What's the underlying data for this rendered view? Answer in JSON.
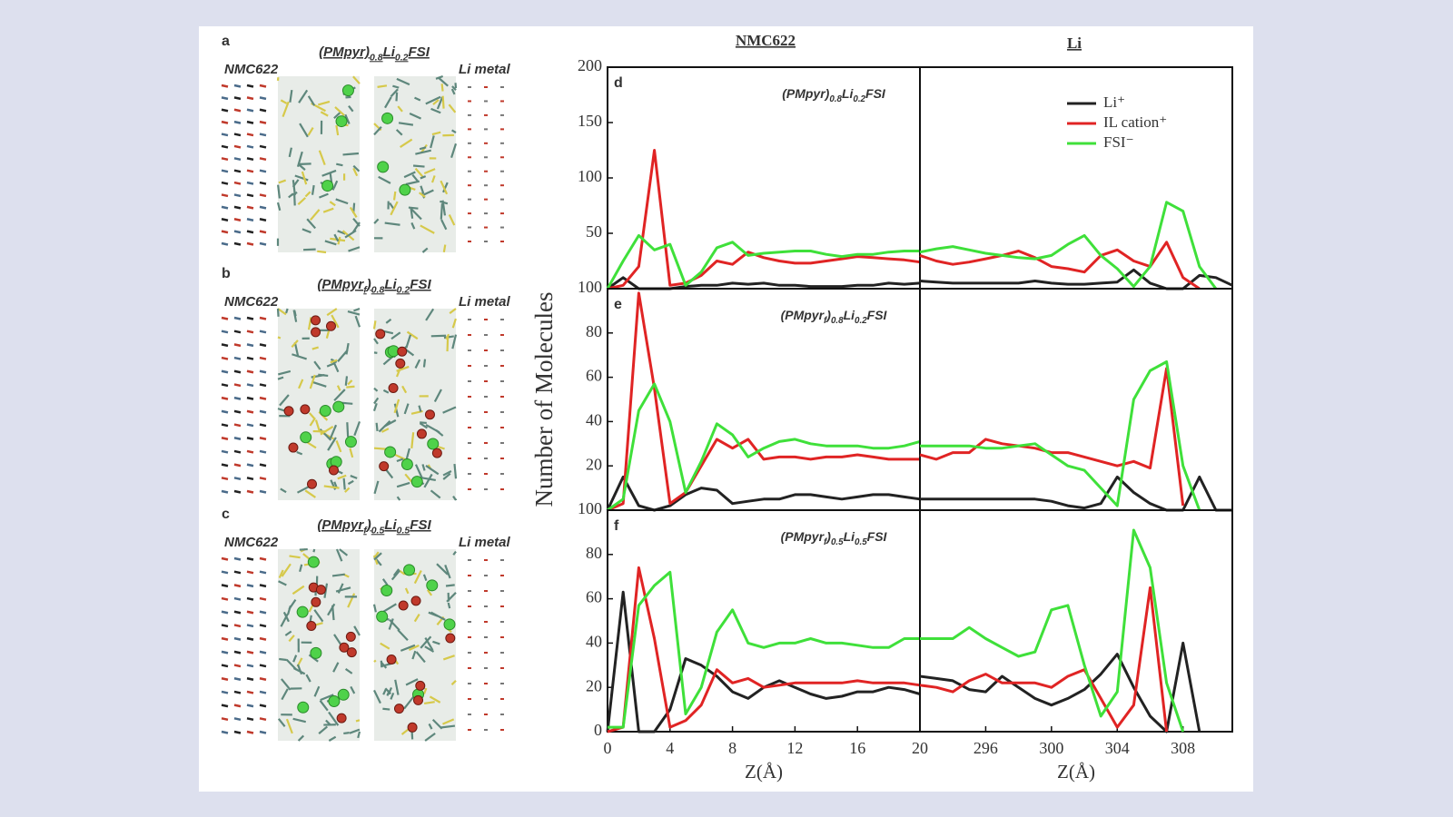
{
  "panels": [
    {
      "letter": "a",
      "title": [
        "(PMpyr)",
        "0.8",
        "Li",
        "0.2",
        "FSI"
      ],
      "left_label": "NMC622",
      "right_label": "Li metal"
    },
    {
      "letter": "b",
      "title": [
        "(PMpyr",
        "f",
        ")",
        "0.8",
        "Li",
        "0.2",
        "FSI"
      ],
      "left_label": "NMC622",
      "right_label": "Li metal"
    },
    {
      "letter": "c",
      "title": [
        "(PMpyr",
        "f",
        ")",
        "0.5",
        "Li",
        "0.5",
        "FSI"
      ],
      "left_label": "NMC622",
      "right_label": "Li metal"
    }
  ],
  "column_headers": [
    "NMC622",
    "Li"
  ],
  "ylabel": "Number of Molecules",
  "chart_data": [
    {
      "type": "line",
      "letter": "d",
      "title": [
        "(PMpyr)",
        "0.8",
        "Li",
        "0.2",
        "FSI"
      ],
      "x": [
        0,
        1,
        2,
        3,
        4,
        5,
        6,
        7,
        8,
        9,
        10,
        11,
        12,
        13,
        14,
        15,
        16,
        17,
        18,
        19,
        20
      ],
      "xlim": [
        0,
        20
      ],
      "ylim": [
        0,
        200
      ],
      "yticks": [
        50,
        100,
        150,
        200
      ],
      "series": [
        {
          "color": "#222222",
          "values": [
            0,
            10,
            0,
            0,
            0,
            2,
            3,
            3,
            5,
            4,
            5,
            3,
            3,
            2,
            2,
            2,
            3,
            3,
            5,
            4,
            5
          ]
        },
        {
          "color": "#e02424",
          "values": [
            0,
            3,
            20,
            125,
            3,
            5,
            12,
            25,
            22,
            33,
            28,
            25,
            23,
            23,
            25,
            27,
            29,
            28,
            27,
            26,
            24
          ]
        },
        {
          "color": "#3fe03a",
          "values": [
            0,
            25,
            48,
            35,
            40,
            3,
            15,
            37,
            42,
            30,
            32,
            33,
            34,
            34,
            31,
            29,
            31,
            31,
            33,
            34,
            34
          ]
        }
      ]
    },
    {
      "type": "line",
      "legend": "upper right",
      "x": [
        292,
        293,
        294,
        295,
        296,
        297,
        298,
        299,
        300,
        301,
        302,
        303,
        304,
        305,
        306,
        307,
        308,
        309,
        310,
        311
      ],
      "xlim": [
        292,
        311
      ],
      "ylim": [
        0,
        200
      ],
      "series": [
        {
          "name": "Li⁺",
          "color": "#222222",
          "values": [
            7,
            6,
            5,
            5,
            5,
            5,
            5,
            7,
            5,
            4,
            4,
            5,
            6,
            17,
            5,
            0,
            0,
            12,
            10,
            3
          ]
        },
        {
          "name": "IL cation⁺",
          "color": "#e02424",
          "values": [
            30,
            25,
            22,
            24,
            27,
            30,
            34,
            28,
            20,
            18,
            15,
            30,
            35,
            25,
            20,
            42,
            10,
            0,
            null,
            null
          ]
        },
        {
          "name": "FSI⁻",
          "color": "#3fe03a",
          "values": [
            33,
            36,
            38,
            35,
            32,
            30,
            28,
            27,
            30,
            40,
            48,
            30,
            18,
            2,
            20,
            78,
            70,
            20,
            0,
            null
          ]
        }
      ]
    },
    {
      "type": "line",
      "letter": "e",
      "title": [
        "(PMpyr",
        "f",
        ")",
        "0.8",
        "Li",
        "0.2",
        "FSI"
      ],
      "x": [
        0,
        1,
        2,
        3,
        4,
        5,
        6,
        7,
        8,
        9,
        10,
        11,
        12,
        13,
        14,
        15,
        16,
        17,
        18,
        19,
        20
      ],
      "xlim": [
        0,
        20
      ],
      "ylim": [
        0,
        100
      ],
      "yticks": [
        20,
        40,
        60,
        80,
        100
      ],
      "series": [
        {
          "color": "#222222",
          "values": [
            0,
            15,
            2,
            0,
            2,
            7,
            10,
            9,
            3,
            4,
            5,
            5,
            7,
            7,
            6,
            5,
            6,
            7,
            7,
            6,
            5
          ]
        },
        {
          "color": "#e02424",
          "values": [
            0,
            3,
            98,
            55,
            3,
            8,
            20,
            32,
            28,
            32,
            23,
            24,
            24,
            23,
            24,
            24,
            25,
            24,
            23,
            23,
            23
          ]
        },
        {
          "color": "#3fe03a",
          "values": [
            0,
            5,
            45,
            57,
            40,
            8,
            22,
            39,
            34,
            24,
            28,
            31,
            32,
            30,
            29,
            29,
            29,
            28,
            28,
            29,
            31
          ]
        }
      ]
    },
    {
      "type": "line",
      "x": [
        292,
        293,
        294,
        295,
        296,
        297,
        298,
        299,
        300,
        301,
        302,
        303,
        304,
        305,
        306,
        307,
        308,
        309,
        310,
        311
      ],
      "xlim": [
        292,
        311
      ],
      "ylim": [
        0,
        100
      ],
      "series": [
        {
          "color": "#222222",
          "values": [
            5,
            5,
            5,
            5,
            5,
            5,
            5,
            5,
            4,
            2,
            1,
            3,
            15,
            8,
            3,
            0,
            0,
            15,
            0,
            0
          ]
        },
        {
          "color": "#e02424",
          "values": [
            25,
            23,
            26,
            26,
            32,
            30,
            29,
            28,
            26,
            26,
            24,
            22,
            20,
            22,
            19,
            64,
            2,
            null,
            null,
            null
          ]
        },
        {
          "color": "#3fe03a",
          "values": [
            29,
            29,
            29,
            29,
            28,
            28,
            29,
            30,
            25,
            20,
            18,
            10,
            2,
            50,
            63,
            67,
            20,
            0,
            null,
            null
          ]
        }
      ]
    },
    {
      "type": "line",
      "letter": "f",
      "title": [
        "(PMpyr",
        "f",
        ")",
        "0.5",
        "Li",
        "0.5",
        "FSI"
      ],
      "x": [
        0,
        1,
        2,
        3,
        4,
        5,
        6,
        7,
        8,
        9,
        10,
        11,
        12,
        13,
        14,
        15,
        16,
        17,
        18,
        19,
        20
      ],
      "xlim": [
        0,
        20
      ],
      "xticks": [
        0,
        4,
        8,
        12,
        16,
        20
      ],
      "xlabel": "Z(Å)",
      "ylim": [
        0,
        100
      ],
      "yticks": [
        0,
        20,
        40,
        60,
        80,
        100
      ],
      "series": [
        {
          "color": "#222222",
          "values": [
            0,
            63,
            0,
            0,
            10,
            33,
            30,
            25,
            18,
            15,
            20,
            23,
            20,
            17,
            15,
            16,
            18,
            18,
            20,
            19,
            17
          ]
        },
        {
          "color": "#e02424",
          "values": [
            0,
            2,
            74,
            42,
            2,
            5,
            12,
            28,
            22,
            24,
            20,
            21,
            22,
            22,
            22,
            22,
            23,
            22,
            22,
            22,
            21
          ]
        },
        {
          "color": "#3fe03a",
          "values": [
            2,
            2,
            57,
            66,
            72,
            8,
            20,
            45,
            55,
            40,
            38,
            40,
            40,
            42,
            40,
            40,
            39,
            38,
            38,
            42,
            42
          ]
        }
      ]
    },
    {
      "type": "line",
      "x": [
        292,
        293,
        294,
        295,
        296,
        297,
        298,
        299,
        300,
        301,
        302,
        303,
        304,
        305,
        306,
        307,
        308,
        309,
        310,
        311
      ],
      "xlim": [
        292,
        311
      ],
      "xticks": [
        296,
        300,
        304,
        308
      ],
      "xlabel": "Z(Å)",
      "ylim": [
        0,
        100
      ],
      "series": [
        {
          "color": "#222222",
          "values": [
            25,
            24,
            23,
            19,
            18,
            25,
            20,
            15,
            12,
            15,
            19,
            26,
            35,
            20,
            7,
            0,
            40,
            0,
            null,
            null
          ]
        },
        {
          "color": "#e02424",
          "values": [
            21,
            20,
            18,
            23,
            26,
            22,
            22,
            22,
            20,
            25,
            28,
            15,
            2,
            12,
            65,
            0,
            null,
            null,
            null,
            null
          ]
        },
        {
          "color": "#3fe03a",
          "values": [
            42,
            42,
            42,
            47,
            42,
            38,
            34,
            36,
            55,
            57,
            30,
            7,
            18,
            91,
            74,
            22,
            0,
            null,
            null,
            null
          ]
        }
      ]
    }
  ]
}
